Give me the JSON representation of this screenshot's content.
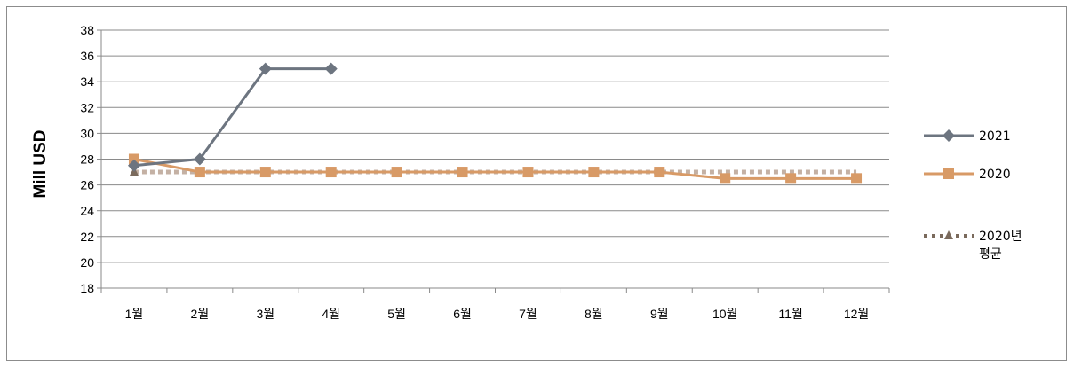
{
  "chart_data": {
    "type": "line",
    "title": "",
    "xlabel": "",
    "ylabel": "Mill USD",
    "categories": [
      "1월",
      "2월",
      "3월",
      "4월",
      "5월",
      "6월",
      "7월",
      "8월",
      "9월",
      "10월",
      "11월",
      "12월"
    ],
    "ylim": [
      18,
      38
    ],
    "yticks": [
      18,
      20,
      22,
      24,
      26,
      28,
      30,
      32,
      34,
      36,
      38
    ],
    "grid": true,
    "legend_position": "right",
    "series": [
      {
        "name": "2021",
        "values": [
          27.5,
          28,
          35,
          35,
          null,
          null,
          null,
          null,
          null,
          null,
          null,
          null
        ],
        "color": "#6d7580",
        "marker": "diamond",
        "line_style": "solid"
      },
      {
        "name": "2020",
        "values": [
          28,
          27,
          27,
          27,
          27,
          27,
          27,
          27,
          27,
          26.5,
          26.5,
          26.5
        ],
        "color": "#d89a66",
        "marker": "square",
        "line_style": "solid"
      },
      {
        "name": "2020년 평균",
        "values": [
          27,
          27,
          27,
          27,
          27,
          27,
          27,
          27,
          27,
          27,
          27,
          27
        ],
        "color": "#c4b1a4",
        "marker": "triangle",
        "line_style": "dotted"
      }
    ]
  }
}
